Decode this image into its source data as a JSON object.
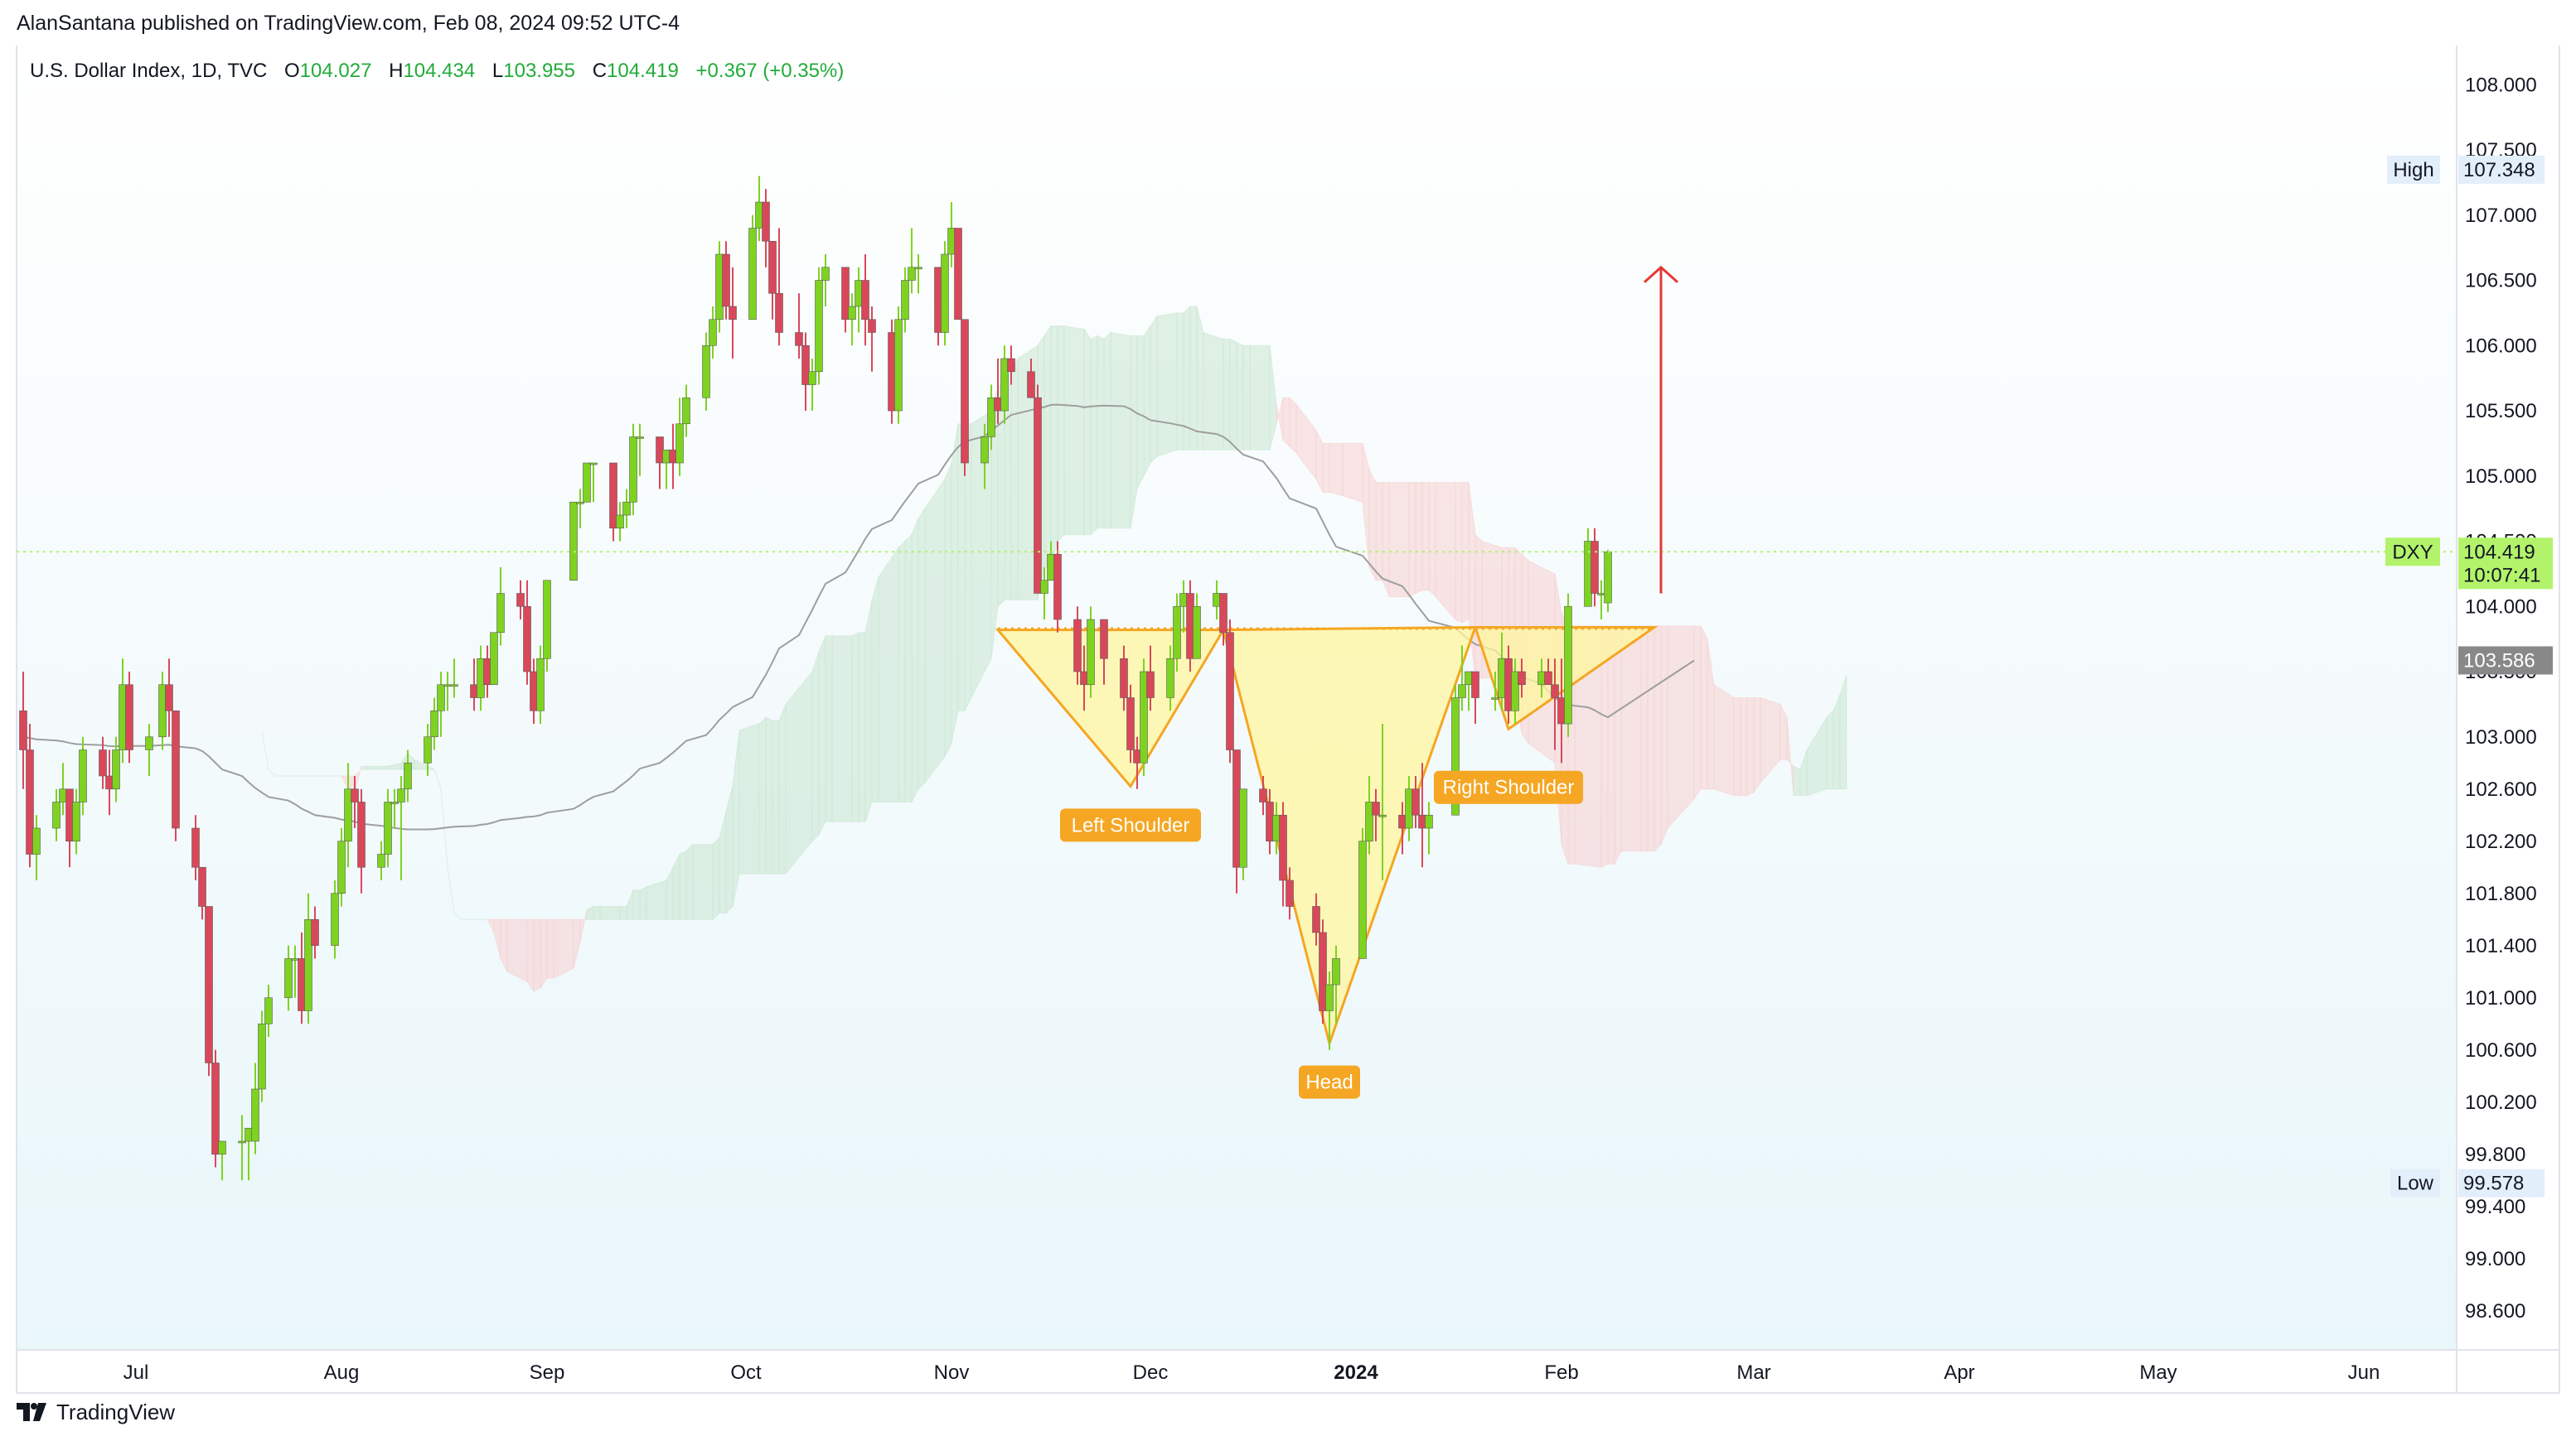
{
  "publisher": "AlanSantana published on TradingView.com, Feb 08, 2024 09:52 UTC-4",
  "footer": {
    "brand": "TradingView"
  },
  "legend": {
    "symbol": "U.S. Dollar Index, 1D, TVC",
    "o_label": "O",
    "o_value": "104.027",
    "h_label": "H",
    "h_value": "104.434",
    "l_label": "L",
    "l_value": "103.955",
    "c_label": "C",
    "c_value": "104.419",
    "change": "+0.367 (+0.35%)"
  },
  "colors": {
    "up": "#7ed321",
    "down": "#d9485a",
    "cloud_green": "#c8e6cf",
    "cloud_red": "#f7d0d0",
    "pattern_fill": "#fff59d",
    "pattern_stroke": "#f5a623",
    "arrow": "#e53935",
    "price_label_bg": "#b2f36b",
    "ma": "#9e9e9e"
  },
  "price_scale": {
    "ticks": [
      "108.000",
      "107.500",
      "107.000",
      "106.500",
      "106.000",
      "105.500",
      "105.000",
      "104.500",
      "104.000",
      "103.500",
      "103.000",
      "102.600",
      "102.200",
      "101.800",
      "101.400",
      "101.000",
      "100.600",
      "100.200",
      "99.800",
      "99.400",
      "99.000",
      "98.600"
    ],
    "high_label": "High",
    "high_value": "107.348",
    "low_label": "Low",
    "low_value": "99.578",
    "symbol_tag": "DXY",
    "last_price": "104.419",
    "countdown": "10:07:41",
    "ma_value": "103.586"
  },
  "time_scale": {
    "months": [
      "Jul",
      "Aug",
      "Sep",
      "Oct",
      "Nov",
      "Dec",
      "2024",
      "Feb",
      "Mar",
      "Apr",
      "May",
      "Jun"
    ]
  },
  "annotations": {
    "left_shoulder": "Left Shoulder",
    "head": "Head",
    "right_shoulder": "Right Shoulder"
  },
  "chart_data": {
    "type": "candlestick",
    "title": "U.S. Dollar Index, 1D, TVC",
    "ylim": [
      98.3,
      108.3
    ],
    "x_range": [
      "2023-06-13",
      "2024-06-15"
    ],
    "candles": [
      [
        "2023-06-14",
        103.2,
        103.5,
        102.6,
        102.9
      ],
      [
        "2023-06-15",
        102.9,
        103.1,
        102.0,
        102.1
      ],
      [
        "2023-06-16",
        102.1,
        102.4,
        101.9,
        102.3
      ],
      [
        "2023-06-19",
        102.3,
        102.6,
        102.2,
        102.5
      ],
      [
        "2023-06-20",
        102.5,
        102.8,
        102.4,
        102.6
      ],
      [
        "2023-06-21",
        102.6,
        102.6,
        102.0,
        102.2
      ],
      [
        "2023-06-22",
        102.2,
        102.6,
        102.1,
        102.5
      ],
      [
        "2023-06-23",
        102.5,
        103.0,
        102.4,
        102.9
      ],
      [
        "2023-06-26",
        102.9,
        103.0,
        102.6,
        102.7
      ],
      [
        "2023-06-27",
        102.7,
        102.9,
        102.4,
        102.6
      ],
      [
        "2023-06-28",
        102.6,
        103.0,
        102.5,
        102.9
      ],
      [
        "2023-06-29",
        102.9,
        103.6,
        102.8,
        103.4
      ],
      [
        "2023-06-30",
        103.4,
        103.5,
        102.8,
        102.9
      ],
      [
        "2023-07-03",
        102.9,
        103.1,
        102.7,
        103.0
      ],
      [
        "2023-07-05",
        103.0,
        103.5,
        102.9,
        103.4
      ],
      [
        "2023-07-06",
        103.4,
        103.6,
        103.0,
        103.2
      ],
      [
        "2023-07-07",
        103.2,
        103.2,
        102.2,
        102.3
      ],
      [
        "2023-07-10",
        102.3,
        102.4,
        101.9,
        102.0
      ],
      [
        "2023-07-11",
        102.0,
        102.0,
        101.6,
        101.7
      ],
      [
        "2023-07-12",
        101.7,
        101.7,
        100.4,
        100.5
      ],
      [
        "2023-07-13",
        100.5,
        100.6,
        99.7,
        99.8
      ],
      [
        "2023-07-14",
        99.8,
        99.9,
        99.6,
        99.9
      ],
      [
        "2023-07-17",
        99.9,
        100.1,
        99.6,
        99.9
      ],
      [
        "2023-07-18",
        99.9,
        100.0,
        99.6,
        100.0
      ],
      [
        "2023-07-19",
        99.9,
        100.5,
        99.8,
        100.3
      ],
      [
        "2023-07-20",
        100.3,
        100.9,
        100.2,
        100.8
      ],
      [
        "2023-07-21",
        100.8,
        101.1,
        100.7,
        101.0
      ],
      [
        "2023-07-24",
        101.0,
        101.4,
        100.9,
        101.3
      ],
      [
        "2023-07-25",
        101.3,
        101.4,
        101.0,
        101.3
      ],
      [
        "2023-07-26",
        101.3,
        101.5,
        100.8,
        100.9
      ],
      [
        "2023-07-27",
        100.9,
        101.8,
        100.8,
        101.6
      ],
      [
        "2023-07-28",
        101.6,
        101.7,
        101.3,
        101.4
      ],
      [
        "2023-07-31",
        101.4,
        101.9,
        101.3,
        101.8
      ],
      [
        "2023-08-01",
        101.8,
        102.3,
        101.7,
        102.2
      ],
      [
        "2023-08-02",
        102.2,
        102.8,
        102.0,
        102.6
      ],
      [
        "2023-08-03",
        102.6,
        102.7,
        102.3,
        102.5
      ],
      [
        "2023-08-04",
        102.5,
        102.6,
        101.8,
        102.0
      ],
      [
        "2023-08-07",
        102.0,
        102.2,
        101.9,
        102.1
      ],
      [
        "2023-08-08",
        102.1,
        102.6,
        102.0,
        102.5
      ],
      [
        "2023-08-09",
        102.5,
        102.6,
        102.3,
        102.5
      ],
      [
        "2023-08-10",
        102.5,
        102.7,
        101.9,
        102.6
      ],
      [
        "2023-08-11",
        102.6,
        102.9,
        102.5,
        102.8
      ],
      [
        "2023-08-14",
        102.8,
        103.1,
        102.7,
        103.0
      ],
      [
        "2023-08-15",
        103.0,
        103.3,
        102.9,
        103.2
      ],
      [
        "2023-08-16",
        103.2,
        103.5,
        103.0,
        103.4
      ],
      [
        "2023-08-17",
        103.4,
        103.5,
        103.2,
        103.4
      ],
      [
        "2023-08-18",
        103.4,
        103.6,
        103.3,
        103.4
      ],
      [
        "2023-08-21",
        103.4,
        103.6,
        103.2,
        103.3
      ],
      [
        "2023-08-22",
        103.3,
        103.7,
        103.2,
        103.6
      ],
      [
        "2023-08-23",
        103.6,
        103.7,
        103.3,
        103.4
      ],
      [
        "2023-08-24",
        103.4,
        103.8,
        103.4,
        103.8
      ],
      [
        "2023-08-25",
        103.8,
        104.3,
        103.7,
        104.1
      ],
      [
        "2023-08-28",
        104.1,
        104.2,
        103.9,
        104.0
      ],
      [
        "2023-08-29",
        104.0,
        104.2,
        103.4,
        103.5
      ],
      [
        "2023-08-30",
        103.5,
        103.6,
        103.1,
        103.2
      ],
      [
        "2023-08-31",
        103.2,
        103.7,
        103.1,
        103.6
      ],
      [
        "2023-09-01",
        103.6,
        104.2,
        103.5,
        104.2
      ],
      [
        "2023-09-05",
        104.2,
        104.8,
        104.2,
        104.8
      ],
      [
        "2023-09-06",
        104.8,
        104.9,
        104.6,
        104.8
      ],
      [
        "2023-09-07",
        104.8,
        105.1,
        104.8,
        105.1
      ],
      [
        "2023-09-08",
        105.1,
        105.1,
        104.8,
        105.1
      ],
      [
        "2023-09-11",
        105.1,
        105.1,
        104.5,
        104.6
      ],
      [
        "2023-09-12",
        104.6,
        104.8,
        104.5,
        104.7
      ],
      [
        "2023-09-13",
        104.7,
        104.9,
        104.6,
        104.8
      ],
      [
        "2023-09-14",
        104.8,
        105.4,
        104.7,
        105.3
      ],
      [
        "2023-09-15",
        105.3,
        105.4,
        105.0,
        105.3
      ],
      [
        "2023-09-18",
        105.3,
        105.3,
        104.9,
        105.1
      ],
      [
        "2023-09-19",
        105.1,
        105.2,
        104.9,
        105.2
      ],
      [
        "2023-09-20",
        105.2,
        105.4,
        104.9,
        105.1
      ],
      [
        "2023-09-21",
        105.1,
        105.6,
        105.0,
        105.4
      ],
      [
        "2023-09-22",
        105.4,
        105.7,
        105.3,
        105.6
      ],
      [
        "2023-09-25",
        105.6,
        106.1,
        105.5,
        106.0
      ],
      [
        "2023-09-26",
        106.0,
        106.3,
        105.9,
        106.2
      ],
      [
        "2023-09-27",
        106.2,
        106.8,
        106.1,
        106.7
      ],
      [
        "2023-09-28",
        106.7,
        106.8,
        106.2,
        106.3
      ],
      [
        "2023-09-29",
        106.3,
        106.6,
        105.9,
        106.2
      ],
      [
        "2023-10-02",
        106.2,
        107.0,
        106.2,
        106.9
      ],
      [
        "2023-10-03",
        106.9,
        107.3,
        106.8,
        107.1
      ],
      [
        "2023-10-04",
        107.1,
        107.2,
        106.6,
        106.8
      ],
      [
        "2023-10-05",
        106.8,
        106.8,
        106.2,
        106.4
      ],
      [
        "2023-10-06",
        106.4,
        106.9,
        106.0,
        106.1
      ],
      [
        "2023-10-09",
        106.1,
        106.4,
        105.9,
        106.0
      ],
      [
        "2023-10-10",
        106.0,
        106.1,
        105.5,
        105.7
      ],
      [
        "2023-10-11",
        105.7,
        105.9,
        105.5,
        105.8
      ],
      [
        "2023-10-12",
        105.8,
        106.6,
        105.7,
        106.5
      ],
      [
        "2023-10-13",
        106.5,
        106.7,
        106.3,
        106.6
      ],
      [
        "2023-10-16",
        106.6,
        106.6,
        106.1,
        106.2
      ],
      [
        "2023-10-17",
        106.2,
        106.4,
        106.0,
        106.3
      ],
      [
        "2023-10-18",
        106.3,
        106.6,
        106.1,
        106.5
      ],
      [
        "2023-10-19",
        106.5,
        106.7,
        106.0,
        106.2
      ],
      [
        "2023-10-20",
        106.2,
        106.3,
        105.8,
        106.1
      ],
      [
        "2023-10-23",
        106.1,
        106.2,
        105.4,
        105.5
      ],
      [
        "2023-10-24",
        105.5,
        106.3,
        105.4,
        106.2
      ],
      [
        "2023-10-25",
        106.2,
        106.6,
        106.1,
        106.5
      ],
      [
        "2023-10-26",
        106.5,
        106.9,
        106.4,
        106.6
      ],
      [
        "2023-10-27",
        106.6,
        106.7,
        106.4,
        106.6
      ],
      [
        "2023-10-30",
        106.6,
        106.6,
        106.0,
        106.1
      ],
      [
        "2023-10-31",
        106.1,
        106.8,
        106.0,
        106.7
      ],
      [
        "2023-11-01",
        106.7,
        107.1,
        106.6,
        106.9
      ],
      [
        "2023-11-02",
        106.9,
        106.9,
        106.2,
        106.2
      ],
      [
        "2023-11-03",
        106.2,
        106.2,
        105.0,
        105.1
      ],
      [
        "2023-11-06",
        105.1,
        105.4,
        104.9,
        105.3
      ],
      [
        "2023-11-07",
        105.3,
        105.7,
        105.2,
        105.6
      ],
      [
        "2023-11-08",
        105.6,
        105.9,
        105.4,
        105.5
      ],
      [
        "2023-11-09",
        105.5,
        106.0,
        105.4,
        105.9
      ],
      [
        "2023-11-10",
        105.9,
        106.0,
        105.7,
        105.8
      ],
      [
        "2023-11-13",
        105.8,
        105.9,
        105.6,
        105.6
      ],
      [
        "2023-11-14",
        105.6,
        105.7,
        104.1,
        104.1
      ],
      [
        "2023-11-15",
        104.1,
        104.3,
        103.9,
        104.2
      ],
      [
        "2023-11-16",
        104.2,
        104.5,
        104.2,
        104.4
      ],
      [
        "2023-11-17",
        104.4,
        104.5,
        103.8,
        103.9
      ],
      [
        "2023-11-20",
        103.9,
        104.0,
        103.4,
        103.5
      ],
      [
        "2023-11-21",
        103.5,
        103.7,
        103.2,
        103.4
      ],
      [
        "2023-11-22",
        103.4,
        104.0,
        103.3,
        103.9
      ],
      [
        "2023-11-24",
        103.9,
        103.9,
        103.4,
        103.6
      ],
      [
        "2023-11-27",
        103.6,
        103.7,
        103.2,
        103.3
      ],
      [
        "2023-11-28",
        103.3,
        103.4,
        102.8,
        102.9
      ],
      [
        "2023-11-29",
        102.9,
        103.0,
        102.6,
        102.8
      ],
      [
        "2023-11-30",
        102.8,
        103.6,
        102.7,
        103.5
      ],
      [
        "2023-12-01",
        103.5,
        103.7,
        103.2,
        103.3
      ],
      [
        "2023-12-04",
        103.3,
        103.7,
        103.2,
        103.6
      ],
      [
        "2023-12-05",
        103.6,
        104.1,
        103.5,
        104.0
      ],
      [
        "2023-12-06",
        104.0,
        104.2,
        103.8,
        104.1
      ],
      [
        "2023-12-07",
        104.1,
        104.2,
        103.5,
        103.6
      ],
      [
        "2023-12-08",
        103.6,
        104.1,
        103.6,
        104.0
      ],
      [
        "2023-12-11",
        104.0,
        104.2,
        103.9,
        104.1
      ],
      [
        "2023-12-12",
        104.1,
        104.1,
        103.7,
        103.8
      ],
      [
        "2023-12-13",
        103.8,
        103.9,
        102.8,
        102.9
      ],
      [
        "2023-12-14",
        102.9,
        102.9,
        101.8,
        102.0
      ],
      [
        "2023-12-15",
        102.0,
        102.6,
        101.9,
        102.6
      ],
      [
        "2023-12-18",
        102.6,
        102.7,
        102.4,
        102.5
      ],
      [
        "2023-12-19",
        102.5,
        102.6,
        102.1,
        102.2
      ],
      [
        "2023-12-20",
        102.2,
        102.5,
        102.1,
        102.4
      ],
      [
        "2023-12-21",
        102.4,
        102.5,
        101.7,
        101.9
      ],
      [
        "2023-12-22",
        101.9,
        102.0,
        101.6,
        101.7
      ],
      [
        "2023-12-26",
        101.7,
        101.8,
        101.4,
        101.5
      ],
      [
        "2023-12-27",
        101.5,
        101.6,
        100.8,
        100.9
      ],
      [
        "2023-12-28",
        100.9,
        101.2,
        100.6,
        101.1
      ],
      [
        "2023-12-29",
        101.1,
        101.4,
        100.8,
        101.3
      ],
      [
        "2024-01-02",
        101.3,
        102.3,
        101.3,
        102.2
      ],
      [
        "2024-01-03",
        102.2,
        102.7,
        102.1,
        102.5
      ],
      [
        "2024-01-04",
        102.5,
        102.6,
        102.2,
        102.4
      ],
      [
        "2024-01-05",
        102.4,
        103.1,
        101.9,
        102.4
      ],
      [
        "2024-01-08",
        102.4,
        102.5,
        102.1,
        102.3
      ],
      [
        "2024-01-09",
        102.3,
        102.7,
        102.2,
        102.6
      ],
      [
        "2024-01-10",
        102.6,
        102.7,
        102.3,
        102.4
      ],
      [
        "2024-01-11",
        102.4,
        102.8,
        102.0,
        102.3
      ],
      [
        "2024-01-12",
        102.3,
        102.5,
        102.1,
        102.4
      ],
      [
        "2024-01-16",
        102.4,
        103.4,
        102.4,
        103.3
      ],
      [
        "2024-01-17",
        103.3,
        103.7,
        103.2,
        103.4
      ],
      [
        "2024-01-18",
        103.4,
        103.5,
        103.2,
        103.5
      ],
      [
        "2024-01-19",
        103.5,
        103.5,
        103.1,
        103.3
      ],
      [
        "2024-01-22",
        103.3,
        103.5,
        103.2,
        103.3
      ],
      [
        "2024-01-23",
        103.3,
        103.8,
        103.2,
        103.6
      ],
      [
        "2024-01-24",
        103.6,
        103.7,
        103.1,
        103.2
      ],
      [
        "2024-01-25",
        103.2,
        103.6,
        103.1,
        103.5
      ],
      [
        "2024-01-26",
        103.5,
        103.6,
        103.3,
        103.4
      ],
      [
        "2024-01-29",
        103.4,
        103.6,
        103.3,
        103.5
      ],
      [
        "2024-01-30",
        103.5,
        103.6,
        103.4,
        103.4
      ],
      [
        "2024-01-31",
        103.4,
        103.6,
        102.9,
        103.3
      ],
      [
        "2024-02-01",
        103.3,
        103.6,
        102.8,
        103.1
      ],
      [
        "2024-02-02",
        103.1,
        104.1,
        103.0,
        104.0
      ],
      [
        "2024-02-05",
        104.0,
        104.6,
        104.0,
        104.5
      ],
      [
        "2024-02-06",
        104.5,
        104.6,
        104.0,
        104.1
      ],
      [
        "2024-02-07",
        104.1,
        104.2,
        103.9,
        104.1
      ],
      [
        "2024-02-08",
        104.027,
        104.434,
        103.955,
        104.419
      ]
    ]
  }
}
